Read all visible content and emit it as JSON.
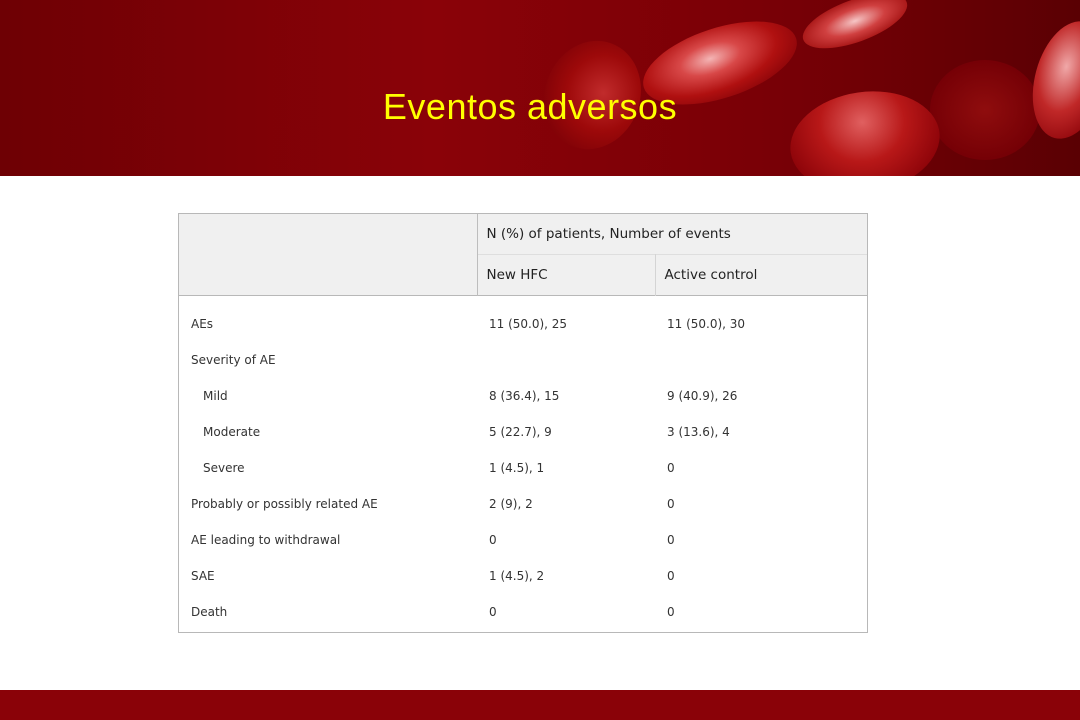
{
  "slide": {
    "title": "Eventos adversos"
  },
  "colors": {
    "banner": "#8a0208",
    "title": "#ffff00",
    "header_fill": "#f0f0f0"
  },
  "table": {
    "group_header": "N (%) of patients, Number of events",
    "columns": [
      "New HFC",
      "Active control"
    ],
    "rows": [
      {
        "label": "AEs",
        "new_hfc": "11 (50.0), 25",
        "active_control": "11 (50.0), 30"
      },
      {
        "label": "Severity of AE",
        "new_hfc": "",
        "active_control": ""
      },
      {
        "label": "Mild",
        "new_hfc": "8 (36.4), 15",
        "active_control": "9 (40.9), 26"
      },
      {
        "label": "Moderate",
        "new_hfc": "5 (22.7), 9",
        "active_control": "3 (13.6), 4"
      },
      {
        "label": "Severe",
        "new_hfc": "1 (4.5), 1",
        "active_control": "0"
      },
      {
        "label": "Probably or possibly related AE",
        "new_hfc": "2 (9), 2",
        "active_control": "0"
      },
      {
        "label": "AE leading to withdrawal",
        "new_hfc": "0",
        "active_control": "0"
      },
      {
        "label": "SAE",
        "new_hfc": "1 (4.5), 2",
        "active_control": "0"
      },
      {
        "label": "Death",
        "new_hfc": "0",
        "active_control": "0"
      }
    ]
  }
}
